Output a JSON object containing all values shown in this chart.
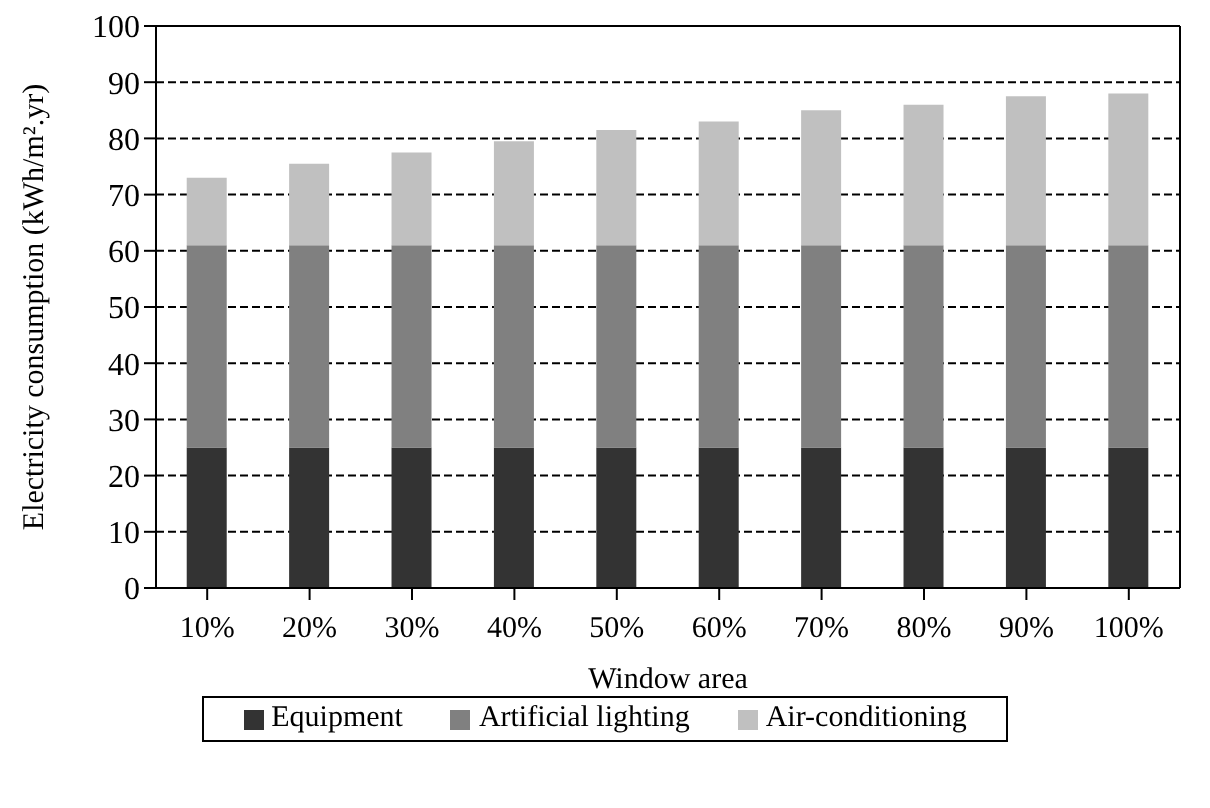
{
  "chart_data": {
    "type": "bar",
    "stacked": true,
    "xlabel": "Window area",
    "ylabel": "Electricity consumption (kWh/m².yr)",
    "categories": [
      "10%",
      "20%",
      "30%",
      "40%",
      "50%",
      "60%",
      "70%",
      "80%",
      "90%",
      "100%"
    ],
    "series": [
      {
        "name": "Equipment",
        "color": "#333333",
        "values": [
          25,
          25,
          25,
          25,
          25,
          25,
          25,
          25,
          25,
          25
        ]
      },
      {
        "name": "Artificial lighting",
        "color": "#808080",
        "values": [
          36,
          36,
          36,
          36,
          36,
          36,
          36,
          36,
          36,
          36
        ]
      },
      {
        "name": "Air-conditioning",
        "color": "#c0c0c0",
        "values": [
          12,
          14.5,
          16.5,
          18.5,
          20.5,
          22,
          24,
          25,
          26.5,
          27
        ]
      }
    ],
    "ylim": [
      0,
      100
    ],
    "yticks": [
      0,
      10,
      20,
      30,
      40,
      50,
      60,
      70,
      80,
      90,
      100
    ],
    "grid": "y",
    "legend": "bottom"
  }
}
